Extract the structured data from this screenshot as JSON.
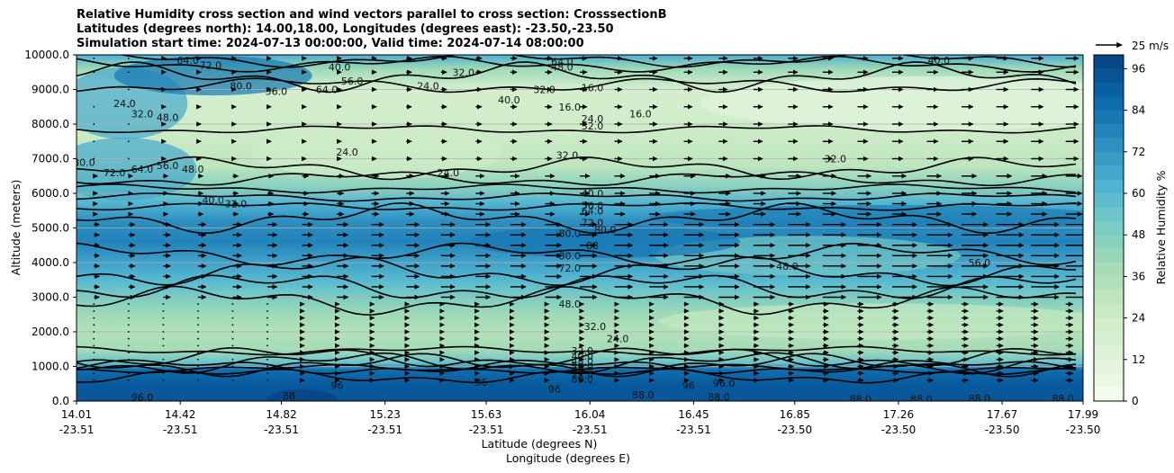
{
  "chart_data": {
    "type": "heatmap",
    "title_lines": [
      "Relative Humidity cross section and wind vectors parallel to cross section: CrosssectionB",
      "Latitudes (degrees north): 14.00,18.00, Longitudes (degrees east): -23.50,-23.50",
      "Simulation start time: 2024-07-13 00:00:00, Valid time: 2024-07-14 08:00:00"
    ],
    "xlabel_lat": "Latitude (degrees N)",
    "xlabel_lon": "Longitude (degrees E)",
    "ylabel": "Altitude (meters)",
    "colorbar_label": "Relative Humidity %",
    "wind_key_label": "25 m/s",
    "x_ticks": [
      {
        "lat": "14.01",
        "lon": "-23.51"
      },
      {
        "lat": "14.42",
        "lon": "-23.51"
      },
      {
        "lat": "14.82",
        "lon": "-23.51"
      },
      {
        "lat": "15.23",
        "lon": "-23.51"
      },
      {
        "lat": "15.63",
        "lon": "-23.51"
      },
      {
        "lat": "16.04",
        "lon": "-23.51"
      },
      {
        "lat": "16.45",
        "lon": "-23.51"
      },
      {
        "lat": "16.85",
        "lon": "-23.50"
      },
      {
        "lat": "17.26",
        "lon": "-23.50"
      },
      {
        "lat": "17.67",
        "lon": "-23.50"
      },
      {
        "lat": "17.99",
        "lon": "-23.50"
      }
    ],
    "x_values": [
      14.01,
      14.42,
      14.82,
      15.23,
      15.63,
      16.04,
      16.45,
      16.85,
      17.26,
      17.67,
      17.99
    ],
    "x_range": [
      14.01,
      17.99
    ],
    "y_ticks": [
      "0.0",
      "1000.0",
      "2000.0",
      "3000.0",
      "4000.0",
      "5000.0",
      "6000.0",
      "7000.0",
      "8000.0",
      "9000.0",
      "10000.0"
    ],
    "y_range": [
      0,
      10000
    ],
    "colorbar_ticks": [
      "0",
      "12",
      "24",
      "36",
      "48",
      "60",
      "72",
      "84",
      "96"
    ],
    "colorbar_range": [
      0,
      100
    ],
    "grid": "horizontal",
    "colormap_stops": [
      "#f7fcf0",
      "#e0f3db",
      "#ccebc5",
      "#a8ddb5",
      "#7bccc4",
      "#4eb3d3",
      "#2b8cbe",
      "#0868ac",
      "#084081"
    ],
    "rh_profile": [
      {
        "alt": 0,
        "rh": 93
      },
      {
        "alt": 500,
        "rh": 92
      },
      {
        "alt": 900,
        "rh": 85
      },
      {
        "alt": 1100,
        "rh": 55
      },
      {
        "alt": 1500,
        "rh": 38
      },
      {
        "alt": 2000,
        "rh": 34
      },
      {
        "alt": 2500,
        "rh": 40
      },
      {
        "alt": 3000,
        "rh": 50
      },
      {
        "alt": 3500,
        "rh": 60
      },
      {
        "alt": 4000,
        "rh": 68
      },
      {
        "alt": 4600,
        "rh": 78
      },
      {
        "alt": 5200,
        "rh": 74
      },
      {
        "alt": 5700,
        "rh": 62
      },
      {
        "alt": 6200,
        "rh": 46
      },
      {
        "alt": 6800,
        "rh": 30
      },
      {
        "alt": 7500,
        "rh": 26
      },
      {
        "alt": 8200,
        "rh": 22
      },
      {
        "alt": 9000,
        "rh": 20
      },
      {
        "alt": 9600,
        "rh": 40
      },
      {
        "alt": 10000,
        "rh": 64
      }
    ],
    "contour_labels": [
      {
        "text": "64.0",
        "lat": 14.45,
        "alt": 9850
      },
      {
        "text": "72.0",
        "lat": 14.54,
        "alt": 9700
      },
      {
        "text": "80.0",
        "lat": 14.66,
        "alt": 9100
      },
      {
        "text": "56.0",
        "lat": 14.8,
        "alt": 8950
      },
      {
        "text": "64.0",
        "lat": 15.0,
        "alt": 9000
      },
      {
        "text": "56.0",
        "lat": 15.1,
        "alt": 9250
      },
      {
        "text": "40.0",
        "lat": 15.05,
        "alt": 9650
      },
      {
        "text": "24.0",
        "lat": 15.4,
        "alt": 9100
      },
      {
        "text": "40.0",
        "lat": 15.72,
        "alt": 8700
      },
      {
        "text": "32.0",
        "lat": 15.86,
        "alt": 9000
      },
      {
        "text": "32.0",
        "lat": 15.54,
        "alt": 9500
      },
      {
        "text": "64.0",
        "lat": 15.93,
        "alt": 9800
      },
      {
        "text": "48.0",
        "lat": 15.93,
        "alt": 9650
      },
      {
        "text": "40.0",
        "lat": 17.42,
        "alt": 9850
      },
      {
        "text": "16.0",
        "lat": 16.05,
        "alt": 9050
      },
      {
        "text": "16.0",
        "lat": 15.96,
        "alt": 8500
      },
      {
        "text": "16.0",
        "lat": 16.24,
        "alt": 8300
      },
      {
        "text": "24.0",
        "lat": 16.05,
        "alt": 8150
      },
      {
        "text": "32.0",
        "lat": 16.05,
        "alt": 7950
      },
      {
        "text": "24.0",
        "lat": 14.2,
        "alt": 8600
      },
      {
        "text": "32.0",
        "lat": 14.27,
        "alt": 8300
      },
      {
        "text": "48.0",
        "lat": 14.37,
        "alt": 8200
      },
      {
        "text": "24.0",
        "lat": 15.08,
        "alt": 7200
      },
      {
        "text": "24.0",
        "lat": 15.48,
        "alt": 6600
      },
      {
        "text": "32.0",
        "lat": 15.95,
        "alt": 7100
      },
      {
        "text": "32.0",
        "lat": 17.01,
        "alt": 7000
      },
      {
        "text": "80.0",
        "lat": 14.04,
        "alt": 6900
      },
      {
        "text": "72.0",
        "lat": 14.16,
        "alt": 6600
      },
      {
        "text": "64.0",
        "lat": 14.27,
        "alt": 6700
      },
      {
        "text": "56.0",
        "lat": 14.37,
        "alt": 6800
      },
      {
        "text": "48.0",
        "lat": 14.47,
        "alt": 6700
      },
      {
        "text": "40.0",
        "lat": 14.55,
        "alt": 5800
      },
      {
        "text": "32.0",
        "lat": 14.64,
        "alt": 5700
      },
      {
        "text": "40.0",
        "lat": 16.05,
        "alt": 6000
      },
      {
        "text": "56.0",
        "lat": 16.05,
        "alt": 5650
      },
      {
        "text": "64.0",
        "lat": 16.05,
        "alt": 5500
      },
      {
        "text": "72.0",
        "lat": 16.05,
        "alt": 5150
      },
      {
        "text": "80.0",
        "lat": 15.96,
        "alt": 4850
      },
      {
        "text": "80.0",
        "lat": 16.1,
        "alt": 4950
      },
      {
        "text": "88",
        "lat": 16.05,
        "alt": 4500
      },
      {
        "text": "80.0",
        "lat": 15.96,
        "alt": 4200
      },
      {
        "text": "72.0",
        "lat": 15.96,
        "alt": 3850
      },
      {
        "text": "48.0",
        "lat": 16.82,
        "alt": 3900
      },
      {
        "text": "56.0",
        "lat": 17.58,
        "alt": 4000
      },
      {
        "text": "48.0",
        "lat": 15.96,
        "alt": 2800
      },
      {
        "text": "32.0",
        "lat": 16.06,
        "alt": 2150
      },
      {
        "text": "24.0",
        "lat": 16.15,
        "alt": 1800
      },
      {
        "text": "32.0",
        "lat": 16.01,
        "alt": 1450
      },
      {
        "text": "40.0",
        "lat": 16.01,
        "alt": 1300
      },
      {
        "text": "48.0",
        "lat": 16.01,
        "alt": 1150
      },
      {
        "text": "56.0",
        "lat": 16.01,
        "alt": 1000
      },
      {
        "text": "64.0",
        "lat": 16.01,
        "alt": 880
      },
      {
        "text": "72.0",
        "lat": 16.01,
        "alt": 760
      },
      {
        "text": "80.0",
        "lat": 16.01,
        "alt": 640
      },
      {
        "text": "96.0",
        "lat": 14.27,
        "alt": 120
      },
      {
        "text": "88",
        "lat": 14.85,
        "alt": 150
      },
      {
        "text": "96",
        "lat": 15.04,
        "alt": 450
      },
      {
        "text": "96",
        "lat": 15.61,
        "alt": 550
      },
      {
        "text": "96",
        "lat": 15.9,
        "alt": 350
      },
      {
        "text": "96",
        "lat": 16.43,
        "alt": 450
      },
      {
        "text": "88.0",
        "lat": 16.25,
        "alt": 180
      },
      {
        "text": "88.0",
        "lat": 16.55,
        "alt": 120
      },
      {
        "text": "96.0",
        "lat": 16.57,
        "alt": 520
      },
      {
        "text": "88.0",
        "lat": 17.11,
        "alt": 60
      },
      {
        "text": "88.0",
        "lat": 17.35,
        "alt": 60
      },
      {
        "text": "88.0",
        "lat": 17.58,
        "alt": 80
      },
      {
        "text": "88.0",
        "lat": 17.91,
        "alt": 80
      }
    ]
  }
}
